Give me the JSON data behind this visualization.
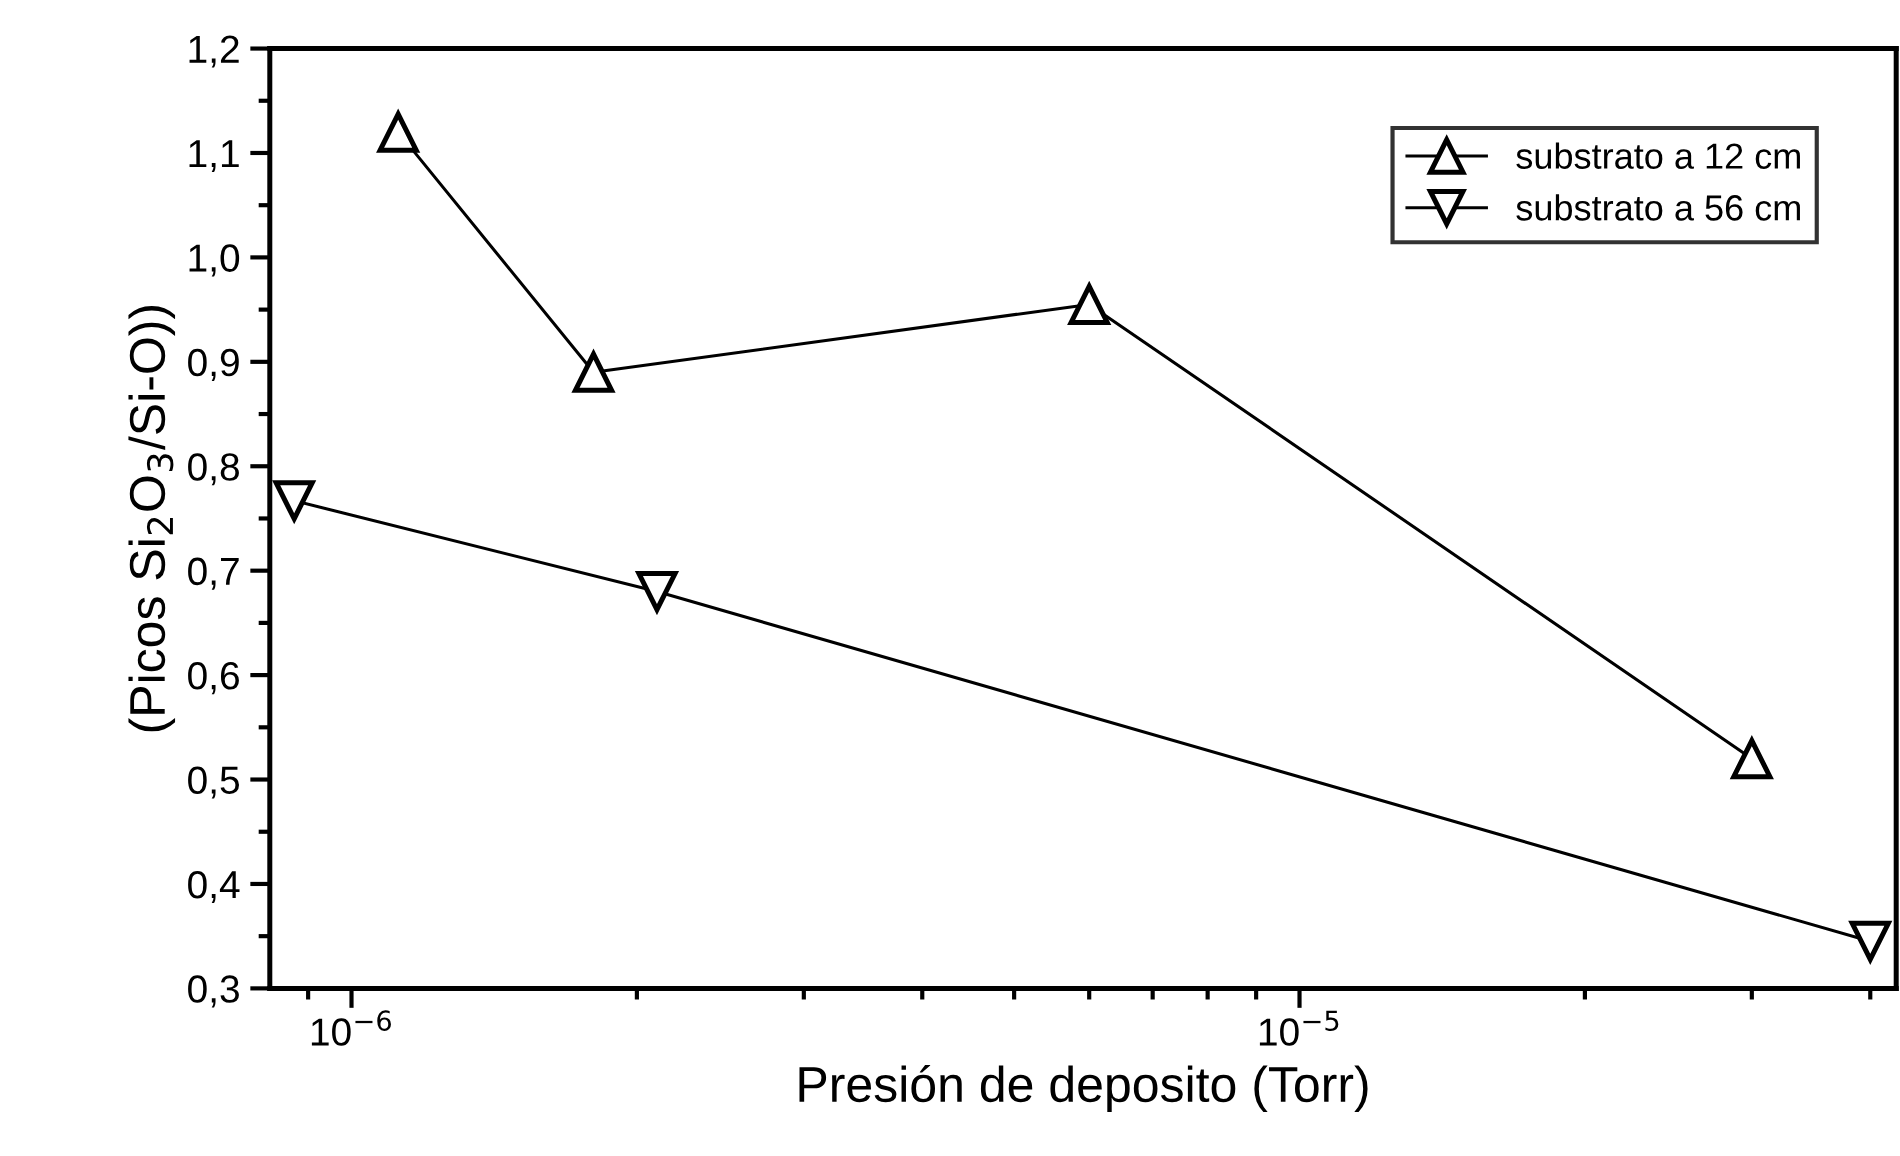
{
  "chart_data": {
    "type": "line",
    "xlabel": "Presión de deposito (Torr)",
    "ylabel": "(Picos Si$_{2}$O$_{3}$/Si-O))",
    "log": "x",
    "xlim": [
      8.2e-07,
      4.26e-05
    ],
    "xticks": [
      {
        "value": 1e-06,
        "label": "10$^{−6}$"
      },
      {
        "value": 1e-05,
        "label": "10$^{−5}$"
      }
    ],
    "ylim": [
      0.3,
      1.2
    ],
    "yticks": [
      {
        "value": 0.3,
        "label": "0,3"
      },
      {
        "value": 0.4,
        "label": "0,4"
      },
      {
        "value": 0.5,
        "label": "0,5"
      },
      {
        "value": 0.6,
        "label": "0,6"
      },
      {
        "value": 0.7,
        "label": "0,7"
      },
      {
        "value": 0.8,
        "label": "0,8"
      },
      {
        "value": 0.9,
        "label": "0,9"
      },
      {
        "value": 1.0,
        "label": "1,0"
      },
      {
        "value": 1.1,
        "label": "1,1"
      },
      {
        "value": 1.2,
        "label": "1,2"
      }
    ],
    "grid": false,
    "legend": "top right",
    "line_style": "solid",
    "series": [
      {
        "name": "substrato a 12 cm",
        "color": "#000000",
        "marker": "triangle",
        "x": [
          1.12e-06,
          1.8e-06,
          6e-06,
          3e-05
        ],
        "values": [
          1.12,
          0.89,
          0.955,
          0.52
        ]
      },
      {
        "name": "substrato a 56 cm",
        "color": "#000000",
        "marker": "triangle-down",
        "x": [
          8.7e-07,
          2.1e-06,
          4e-05
        ],
        "values": [
          0.767,
          0.68,
          0.345
        ]
      }
    ]
  }
}
